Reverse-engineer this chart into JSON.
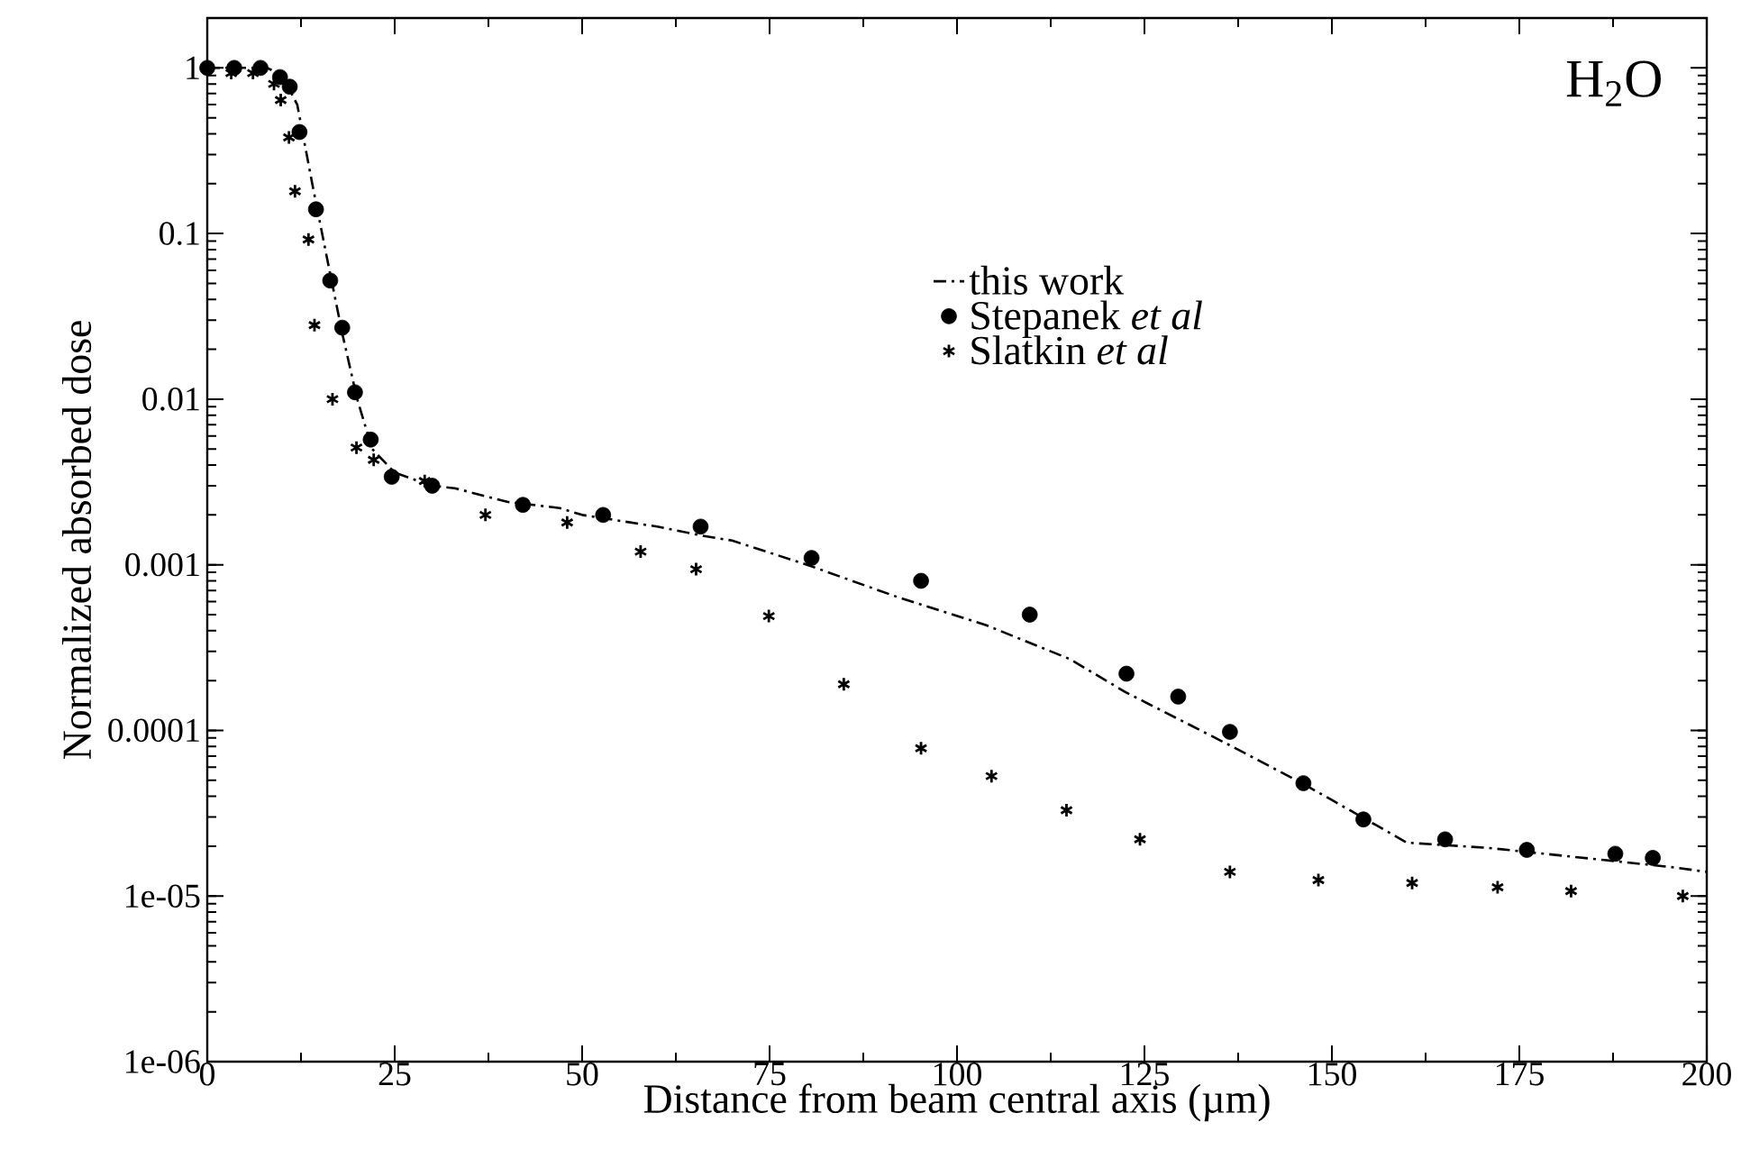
{
  "chart_data": {
    "type": "scatter",
    "xlabel": "Distance from beam central axis (µm)",
    "ylabel": "Normalized absorbed dose",
    "annotations": [
      "H$_{2}$O"
    ],
    "xlim": [
      0,
      200
    ],
    "ylim": [
      1e-06,
      2
    ],
    "log": "y",
    "legend": "top",
    "grid": false,
    "xticks": [
      0,
      25,
      50,
      75,
      100,
      125,
      150,
      175,
      200
    ],
    "yticks": [
      {
        "value": 1e-06,
        "label": "1e-06"
      },
      {
        "value": 1e-05,
        "label": "1e-05"
      },
      0.0001,
      0.001,
      0.01,
      0.1,
      1
    ],
    "series": [
      {
        "name": "this work",
        "type": "line",
        "line_style": "dashdot",
        "marker": "none",
        "color": "#000000",
        "x": [
          0,
          8,
          10,
          12,
          14,
          16,
          18,
          20,
          22,
          25,
          30,
          33,
          40,
          47,
          50,
          60,
          66,
          70,
          80,
          92,
          104,
          115,
          122.5,
          136,
          146,
          150,
          160,
          171,
          195,
          200
        ],
        "values": [
          1,
          1,
          0.9,
          0.6,
          0.2,
          0.07,
          0.025,
          0.01,
          0.005,
          0.0036,
          0.003,
          0.0029,
          0.0024,
          0.0022,
          0.002,
          0.0017,
          0.0015,
          0.0014,
          0.001,
          0.00064,
          0.00043,
          0.00027,
          0.00017,
          8.3e-05,
          4.8e-05,
          3.8e-05,
          2.1e-05,
          1.95e-05,
          1.5e-05,
          1.4e-05
        ]
      },
      {
        "name": "Stepanek *et al*",
        "marker": "circle",
        "color": "#000000",
        "x": [
          0,
          3.6,
          7.1,
          9.7,
          11,
          12.3,
          14.5,
          16.4,
          18,
          19.7,
          21.8,
          24.6,
          30,
          42.1,
          52.8,
          65.8,
          80.6,
          95.2,
          109.7,
          122.6,
          129.5,
          136.4,
          146.2,
          154.2,
          165.1,
          176,
          187.8,
          192.8
        ],
        "values": [
          1,
          1,
          1,
          0.88,
          0.77,
          0.41,
          0.14,
          0.052,
          0.027,
          0.011,
          0.0057,
          0.0034,
          0.003,
          0.0023,
          0.002,
          0.0017,
          0.0011,
          0.0008,
          0.0005,
          0.00022,
          0.00016,
          9.8e-05,
          4.8e-05,
          2.9e-05,
          2.2e-05,
          1.9e-05,
          1.8e-05,
          1.7e-05
        ]
      },
      {
        "name": "Slatkin *et al*",
        "marker": "cross",
        "color": "#000000",
        "x": [
          3.2,
          6.1,
          8.9,
          9.8,
          10.9,
          11.7,
          13.5,
          14.3,
          16.7,
          19.9,
          22.2,
          29,
          37.1,
          48,
          57.8,
          65.2,
          74.9,
          84.9,
          95.2,
          104.6,
          114.6,
          124.4,
          136.4,
          148.2,
          160.7,
          172.1,
          181.9,
          196.8
        ],
        "values": [
          0.93,
          0.93,
          0.8,
          0.64,
          0.38,
          0.18,
          0.092,
          0.028,
          0.01,
          0.0051,
          0.0043,
          0.0032,
          0.002,
          0.0018,
          0.0012,
          0.00094,
          0.00049,
          0.00019,
          7.8e-05,
          5.3e-05,
          3.3e-05,
          2.2e-05,
          1.4e-05,
          1.25e-05,
          1.2e-05,
          1.13e-05,
          1.07e-05,
          1e-05
        ]
      }
    ]
  }
}
